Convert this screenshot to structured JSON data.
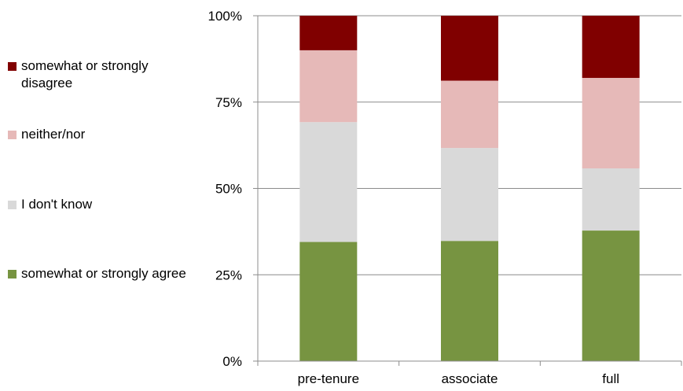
{
  "chart_data": {
    "type": "bar",
    "stacked": true,
    "categories": [
      "pre-tenure",
      "associate",
      "full"
    ],
    "series": [
      {
        "name": "somewhat or strongly agree",
        "color": "#779441",
        "values": [
          34.5,
          34.8,
          37.8
        ]
      },
      {
        "name": "I don't know",
        "color": "#d9d9d9",
        "values": [
          34.7,
          26.9,
          18.0
        ]
      },
      {
        "name": "neither/nor",
        "color": "#e6b9b8",
        "values": [
          20.8,
          19.5,
          26.2
        ]
      },
      {
        "name": "somewhat or strongly disagree",
        "color": "#800000",
        "values": [
          10.0,
          18.8,
          18.0
        ]
      }
    ],
    "yticks": [
      "0%",
      "25%",
      "50%",
      "75%",
      "100%"
    ],
    "ylim": [
      0,
      100
    ],
    "grid": true,
    "legend_position": "left"
  }
}
